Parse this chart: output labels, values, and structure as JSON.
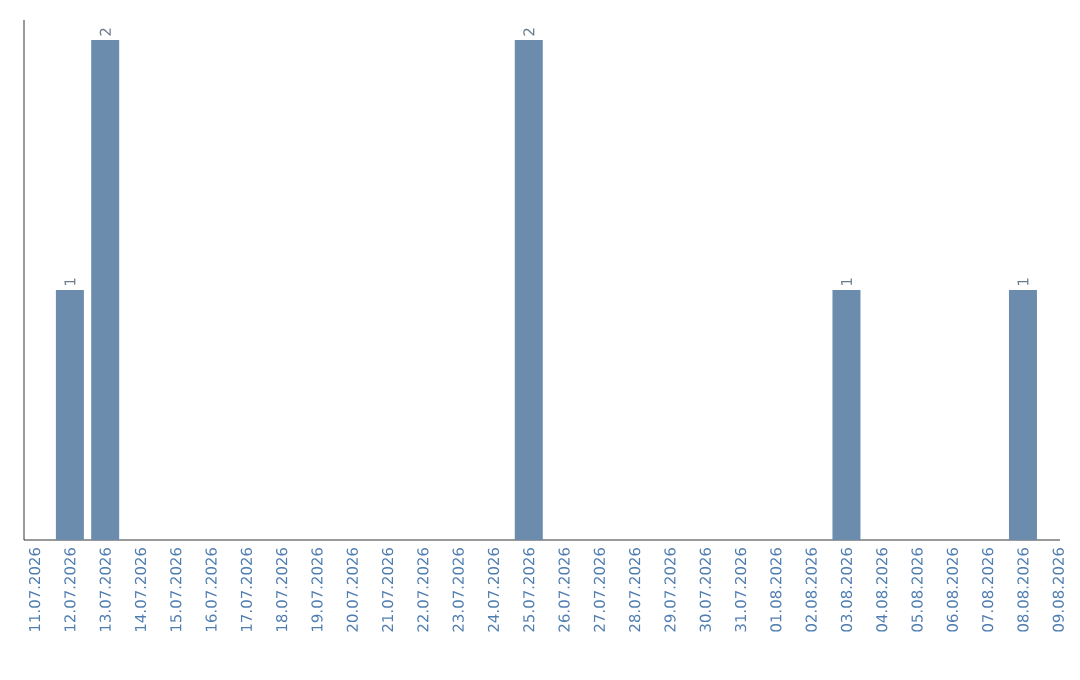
{
  "chart_data": {
    "type": "bar",
    "categories": [
      "11.07.2026",
      "12.07.2026",
      "13.07.2026",
      "14.07.2026",
      "15.07.2026",
      "16.07.2026",
      "17.07.2026",
      "18.07.2026",
      "19.07.2026",
      "20.07.2026",
      "21.07.2026",
      "22.07.2026",
      "23.07.2026",
      "24.07.2026",
      "25.07.2026",
      "26.07.2026",
      "27.07.2026",
      "28.07.2026",
      "29.07.2026",
      "30.07.2026",
      "31.07.2026",
      "01.08.2026",
      "02.08.2026",
      "03.08.2026",
      "04.08.2026",
      "05.08.2026",
      "06.08.2026",
      "07.08.2026",
      "08.08.2026",
      "09.08.2026"
    ],
    "values": [
      0,
      1,
      2,
      0,
      0,
      0,
      0,
      0,
      0,
      0,
      0,
      0,
      0,
      0,
      2,
      0,
      0,
      0,
      0,
      0,
      0,
      0,
      0,
      1,
      0,
      0,
      0,
      0,
      1,
      0
    ],
    "value_labels": [
      null,
      "1",
      "2",
      null,
      null,
      null,
      null,
      null,
      null,
      null,
      null,
      null,
      null,
      null,
      "2",
      null,
      null,
      null,
      null,
      null,
      null,
      null,
      null,
      "1",
      null,
      null,
      null,
      null,
      "1",
      null
    ],
    "color": "#6b8cad",
    "grid": false
  }
}
